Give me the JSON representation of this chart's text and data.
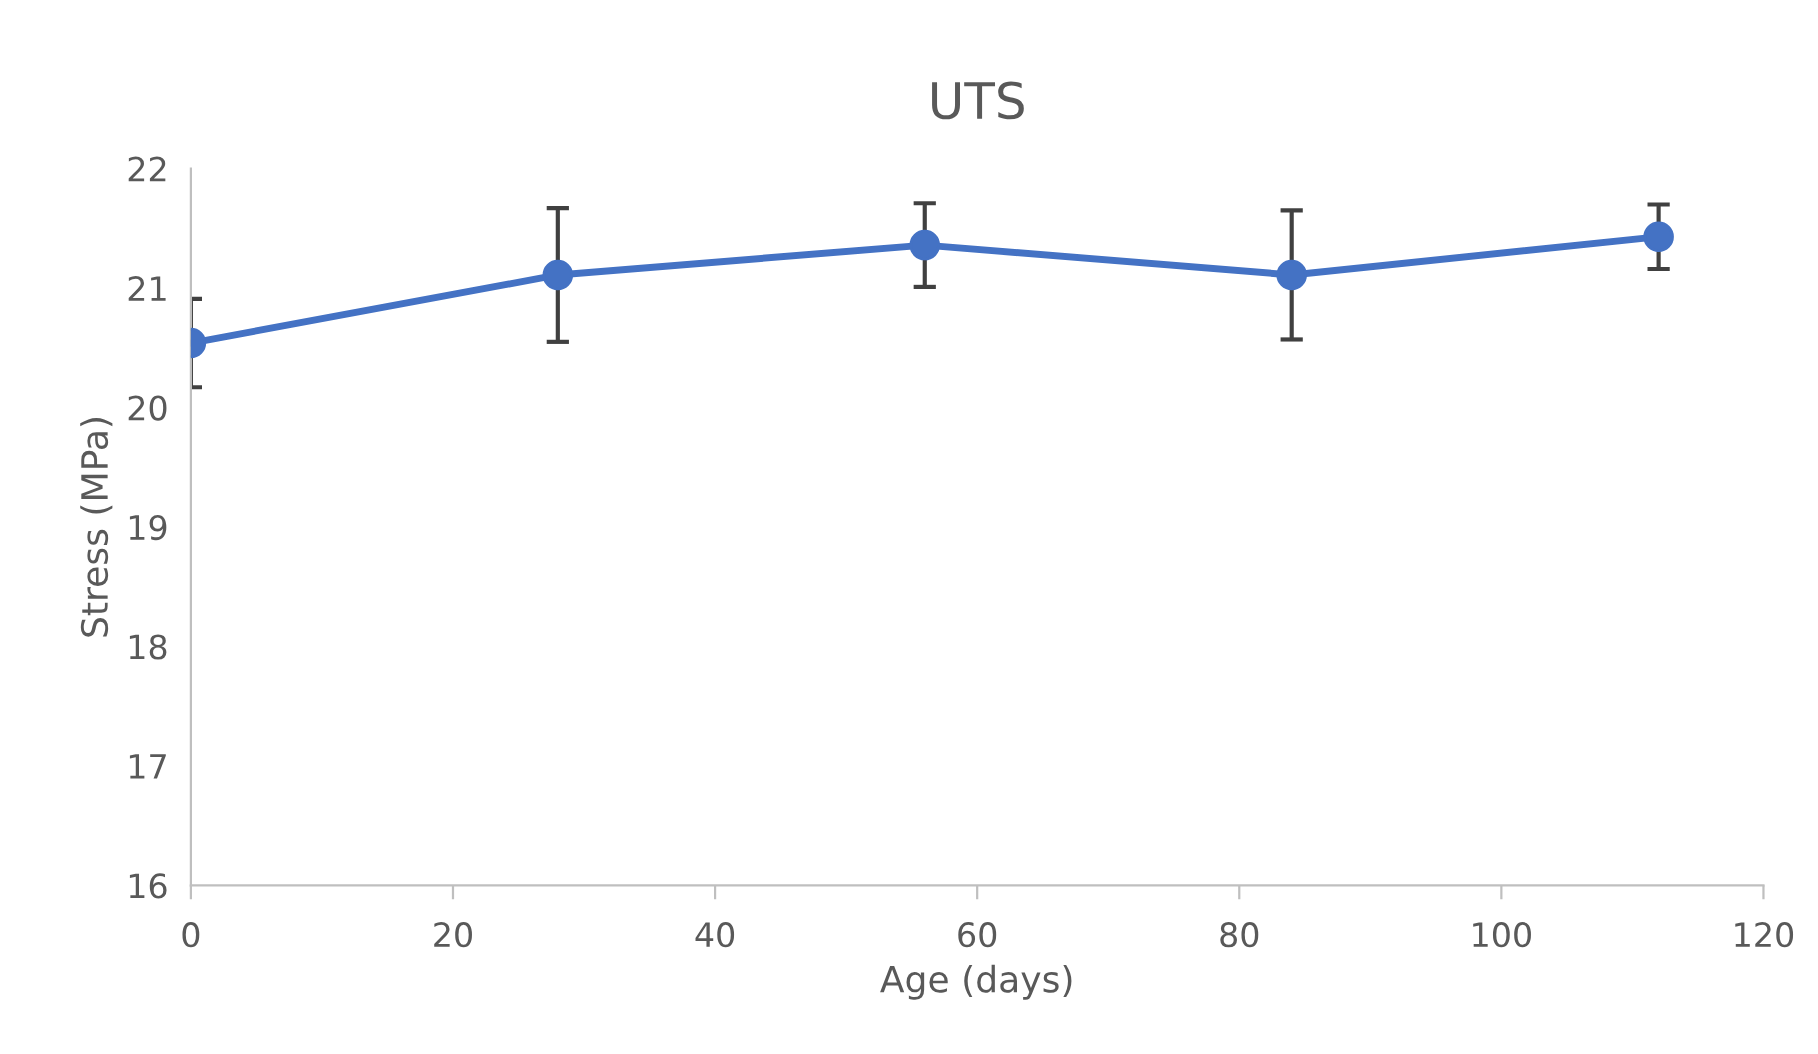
{
  "chart_data": {
    "type": "line",
    "title": "UTS",
    "xlabel": "Age (days)",
    "ylabel": "Stress (MPa)",
    "x": [
      0,
      28,
      56,
      84,
      112
    ],
    "series": [
      {
        "color": "#4472c4",
        "values": [
          20.54,
          21.11,
          21.36,
          21.11,
          21.43
        ],
        "errors": [
          0.37,
          0.56,
          0.35,
          0.54,
          0.27
        ]
      }
    ],
    "xlim": [
      0,
      120
    ],
    "xticks": [
      0,
      20,
      40,
      60,
      80,
      100,
      120
    ],
    "ylim": [
      16,
      22
    ],
    "yticks": [
      16,
      17,
      18,
      19,
      20,
      21,
      22
    ],
    "grid": false,
    "legend": false,
    "marker": "circle",
    "line_style": "solid"
  }
}
